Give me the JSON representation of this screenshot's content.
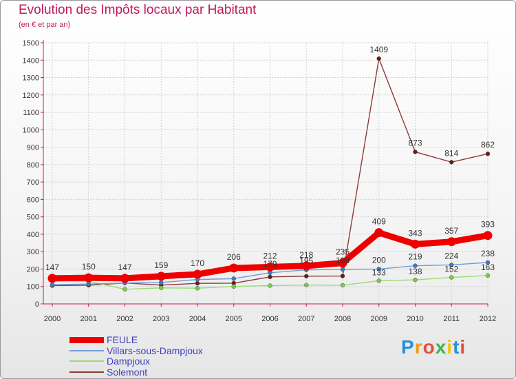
{
  "title": "Evolution des Impôts locaux par Habitant",
  "subtitle": "(en € et par an)",
  "brand": "Proxiti",
  "colors": {
    "title": "#c2185b",
    "axis": "#c2185b",
    "legend_text": "#4040c0"
  },
  "chart_data": {
    "type": "line",
    "x": [
      "2000",
      "2001",
      "2002",
      "2003",
      "2004",
      "2005",
      "2006",
      "2007",
      "2008",
      "2009",
      "2010",
      "2011",
      "2012"
    ],
    "ylim": [
      0,
      1500
    ],
    "yticks": [
      0,
      100,
      200,
      300,
      400,
      500,
      600,
      700,
      800,
      900,
      1000,
      1100,
      1200,
      1300,
      1400,
      1500
    ],
    "grid": true,
    "legend_position": "bottom-left",
    "series": [
      {
        "name": "FEULE",
        "color": "#ee0000",
        "marker": "#ee0000",
        "width": "thick",
        "values": [
          147,
          150,
          147,
          159,
          170,
          206,
          212,
          218,
          235,
          409,
          343,
          357,
          393
        ],
        "labels": [
          "147",
          "150",
          "147",
          "159",
          "170",
          "206",
          "212",
          "218",
          "235",
          "409",
          "343",
          "357",
          "393"
        ]
      },
      {
        "name": "Villars-sous-Dampjoux",
        "color": "#6e9fd6",
        "marker": "#3f78c8",
        "width": "thin",
        "values": [
          110,
          114,
          120,
          123,
          140,
          145,
          179,
          195,
          198,
          200,
          219,
          224,
          238
        ],
        "labels": [
          "",
          "",
          "",
          "",
          "",
          "",
          "179",
          "195",
          "198",
          "200",
          "219",
          "224",
          "238"
        ]
      },
      {
        "name": "Dampjoux",
        "color": "#99dd77",
        "marker": "#7ccc4a",
        "width": "thin",
        "values": [
          132,
          130,
          84,
          92,
          90,
          100,
          105,
          108,
          107,
          133,
          138,
          152,
          163
        ],
        "labels": [
          "",
          "",
          "",
          "",
          "",
          "",
          "",
          "",
          "",
          "133",
          "138",
          "152",
          "163"
        ]
      },
      {
        "name": "Solemont",
        "color": "#8b3a3a",
        "marker": "#6b1a1a",
        "width": "thin",
        "values": [
          105,
          107,
          120,
          108,
          118,
          119,
          155,
          159,
          160,
          1409,
          873,
          814,
          862
        ],
        "labels": [
          "",
          "",
          "",
          "",
          "",
          "",
          "",
          "",
          "",
          "1409",
          "873",
          "814",
          "862"
        ]
      }
    ]
  }
}
